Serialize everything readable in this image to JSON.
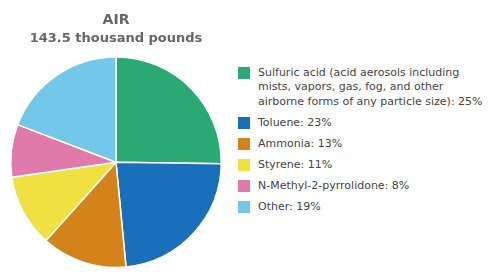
{
  "chart_data": {
    "type": "pie",
    "title": "AIR",
    "subtitle": "143.5 thousand pounds",
    "categories": [
      "Sulfuric acid (acid aerosols including mists, vapors, gas, fog, and other airborne forms of any particle size): 25%",
      "Toluene: 23%",
      "Ammonia: 13%",
      "Styrene: 11%",
      "N-Methyl-2-pyrrolidone: 8%",
      "Other: 19%"
    ],
    "values": [
      25,
      23,
      13,
      11,
      8,
      19
    ],
    "colors": [
      "#2aaa72",
      "#1a6fba",
      "#d4821a",
      "#f0e040",
      "#e07aaa",
      "#72c8e8"
    ],
    "legend": "right"
  }
}
